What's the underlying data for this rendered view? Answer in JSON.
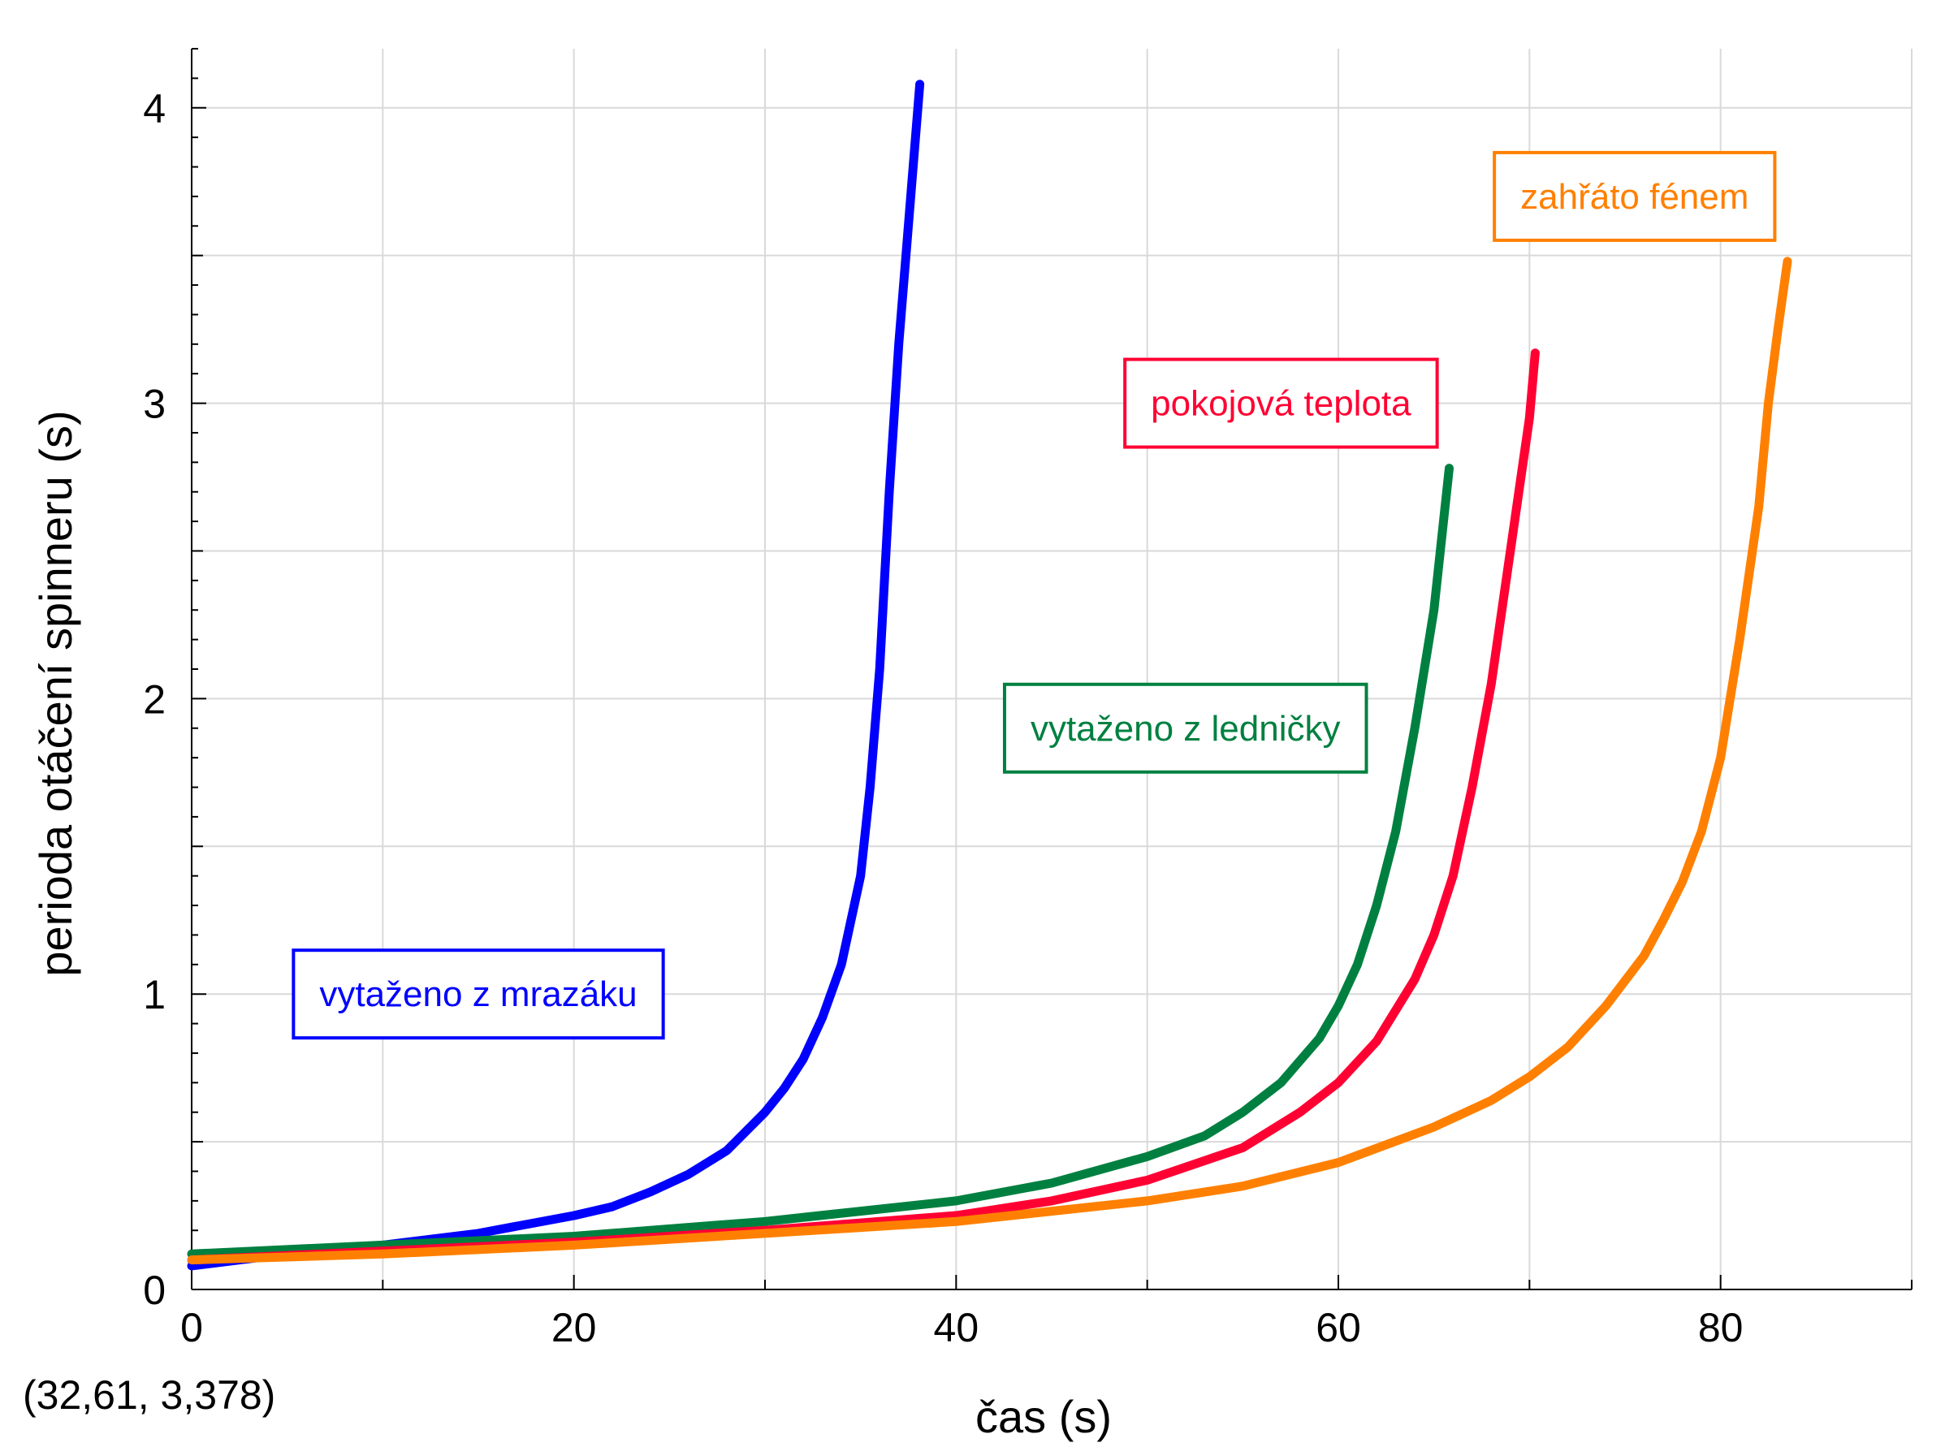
{
  "chart_data": {
    "type": "line",
    "title": "",
    "xlabel": "čas (s)",
    "ylabel": "perioda otáčení spinneru (s)",
    "xlim": [
      0,
      90
    ],
    "ylim": [
      0,
      4.2
    ],
    "x_ticks": [
      0,
      20,
      40,
      60,
      80
    ],
    "y_ticks": [
      0,
      1,
      2,
      3,
      4
    ],
    "grid": true,
    "cursor_readout": "(32,61, 3,378)",
    "series": [
      {
        "label": "vytaženo z mrazáku",
        "color": "#0000ff",
        "label_pos": [
          15,
          1.0
        ],
        "points": [
          [
            0,
            0.08
          ],
          [
            5,
            0.12
          ],
          [
            10,
            0.15
          ],
          [
            15,
            0.19
          ],
          [
            20,
            0.25
          ],
          [
            22,
            0.28
          ],
          [
            24,
            0.33
          ],
          [
            26,
            0.39
          ],
          [
            28,
            0.47
          ],
          [
            30,
            0.6
          ],
          [
            31,
            0.68
          ],
          [
            32,
            0.78
          ],
          [
            33,
            0.92
          ],
          [
            34,
            1.1
          ],
          [
            35,
            1.4
          ],
          [
            35.5,
            1.7
          ],
          [
            36,
            2.1
          ],
          [
            36.5,
            2.7
          ],
          [
            37,
            3.2
          ],
          [
            37.5,
            3.6
          ],
          [
            38.1,
            4.08
          ]
        ]
      },
      {
        "label": "vytaženo z ledničky",
        "color": "#008040",
        "label_pos": [
          52,
          1.9
        ],
        "points": [
          [
            0,
            0.12
          ],
          [
            10,
            0.15
          ],
          [
            20,
            0.18
          ],
          [
            30,
            0.23
          ],
          [
            40,
            0.3
          ],
          [
            45,
            0.36
          ],
          [
            50,
            0.45
          ],
          [
            53,
            0.52
          ],
          [
            55,
            0.6
          ],
          [
            57,
            0.7
          ],
          [
            59,
            0.85
          ],
          [
            60,
            0.96
          ],
          [
            61,
            1.1
          ],
          [
            62,
            1.3
          ],
          [
            63,
            1.55
          ],
          [
            64,
            1.9
          ],
          [
            65,
            2.3
          ],
          [
            65.8,
            2.78
          ]
        ]
      },
      {
        "label": "pokojová teplota",
        "color": "#ff0033",
        "label_pos": [
          57,
          3.0
        ],
        "points": [
          [
            0,
            0.1
          ],
          [
            10,
            0.13
          ],
          [
            20,
            0.16
          ],
          [
            30,
            0.2
          ],
          [
            40,
            0.25
          ],
          [
            45,
            0.3
          ],
          [
            50,
            0.37
          ],
          [
            55,
            0.48
          ],
          [
            58,
            0.6
          ],
          [
            60,
            0.7
          ],
          [
            62,
            0.84
          ],
          [
            64,
            1.05
          ],
          [
            65,
            1.2
          ],
          [
            66,
            1.4
          ],
          [
            67,
            1.7
          ],
          [
            68,
            2.05
          ],
          [
            69,
            2.5
          ],
          [
            70,
            2.95
          ],
          [
            70.3,
            3.17
          ]
        ]
      },
      {
        "label": "zahřáto fénem",
        "color": "#ff8000",
        "label_pos": [
          75.5,
          3.7
        ],
        "points": [
          [
            0,
            0.1
          ],
          [
            10,
            0.12
          ],
          [
            20,
            0.15
          ],
          [
            30,
            0.19
          ],
          [
            40,
            0.23
          ],
          [
            50,
            0.3
          ],
          [
            55,
            0.35
          ],
          [
            60,
            0.43
          ],
          [
            65,
            0.55
          ],
          [
            68,
            0.64
          ],
          [
            70,
            0.72
          ],
          [
            72,
            0.82
          ],
          [
            74,
            0.96
          ],
          [
            76,
            1.13
          ],
          [
            77,
            1.25
          ],
          [
            78,
            1.38
          ],
          [
            79,
            1.55
          ],
          [
            80,
            1.8
          ],
          [
            81,
            2.2
          ],
          [
            82,
            2.65
          ],
          [
            82.5,
            3.0
          ],
          [
            83,
            3.25
          ],
          [
            83.5,
            3.48
          ]
        ]
      }
    ]
  }
}
